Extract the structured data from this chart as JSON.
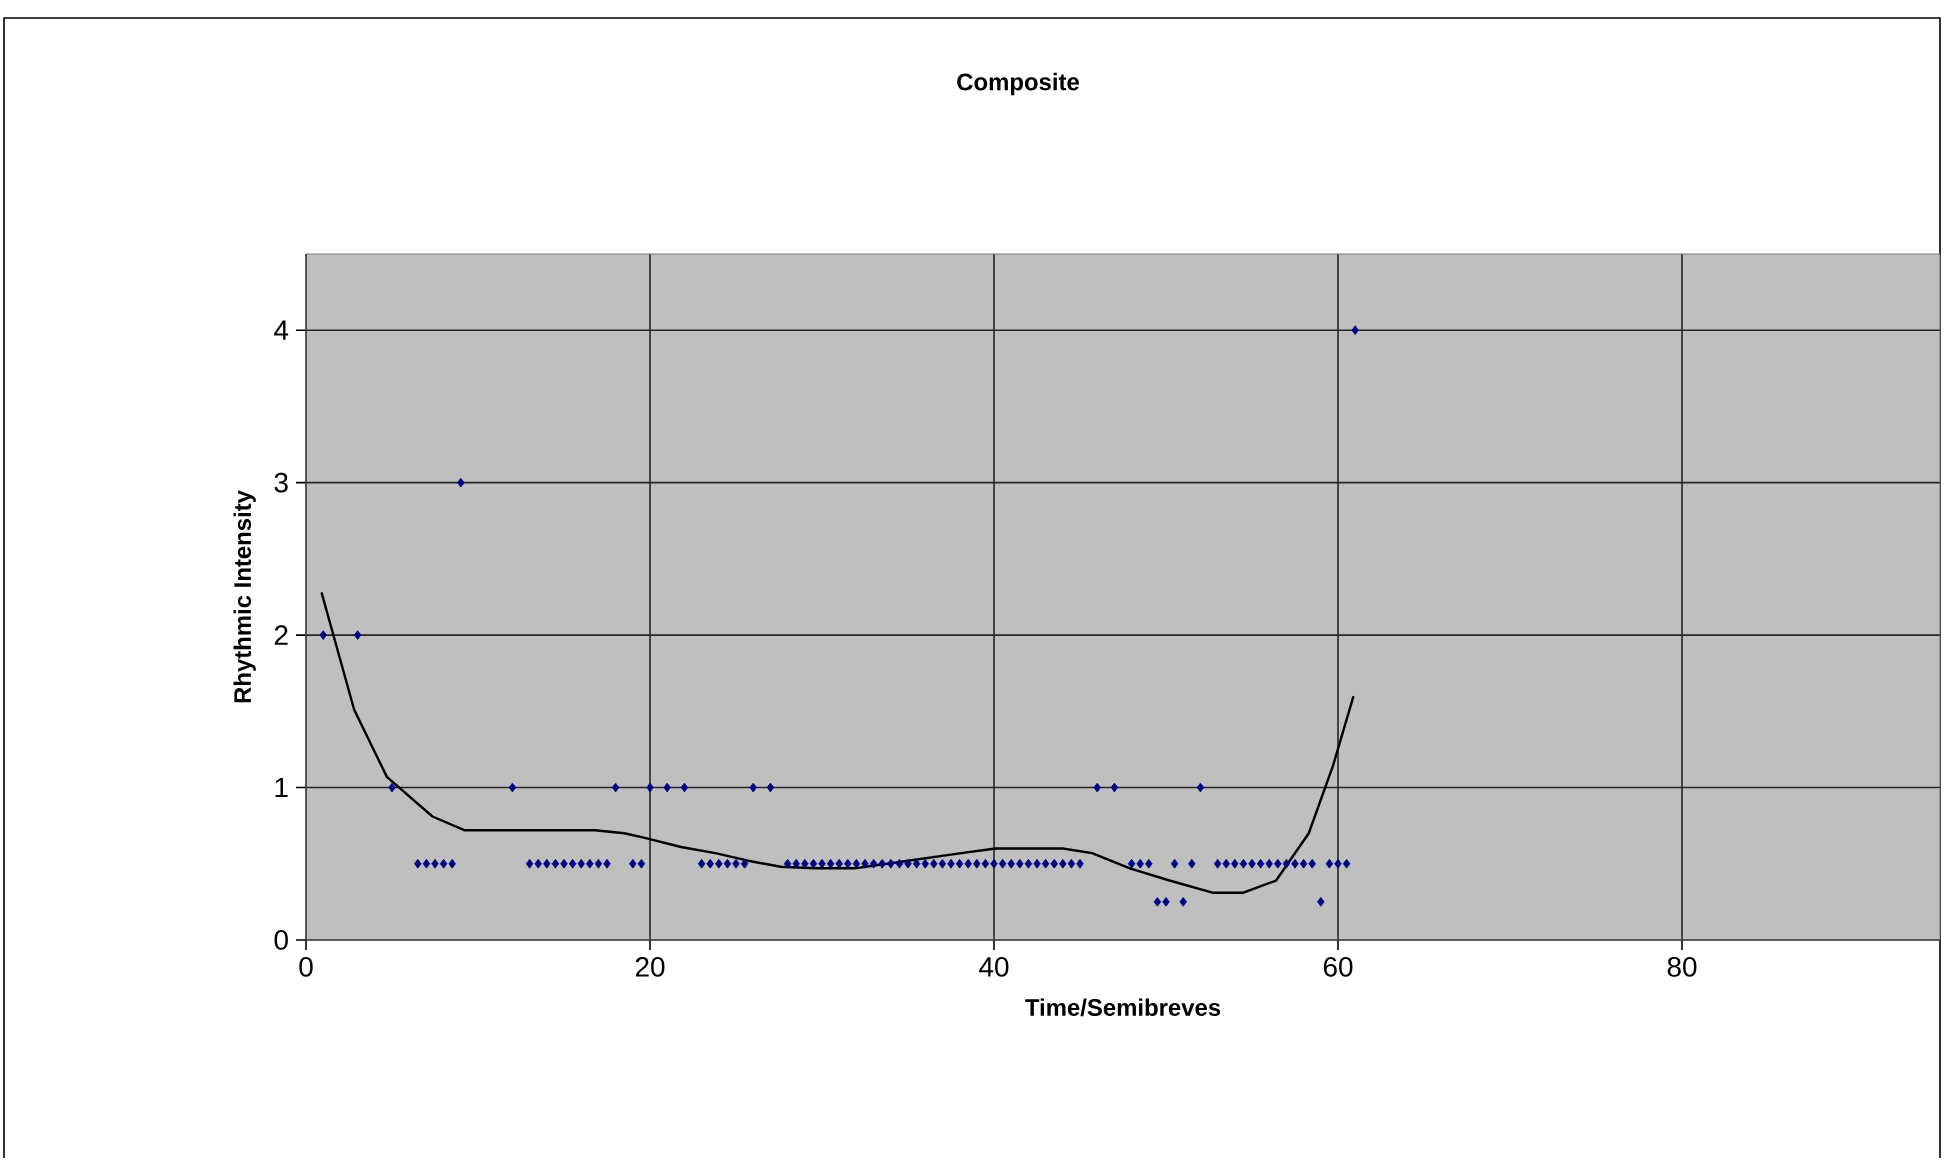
{
  "chart_data": {
    "type": "scatter",
    "title": "Composite",
    "xlabel": "Time/Semibreves",
    "ylabel": "Rhythmic Intensity",
    "xlim": [
      0,
      95
    ],
    "ylim": [
      0,
      4.5
    ],
    "xticks": [
      0,
      20,
      40,
      60,
      80
    ],
    "yticks": [
      0,
      1,
      2,
      3,
      4
    ],
    "grid": true,
    "series": [
      {
        "marker": "diamond",
        "color": "#000080",
        "x": [
          1,
          3,
          5,
          6.5,
          7,
          7.5,
          8,
          8.5,
          9,
          12,
          13,
          13.5,
          14,
          14.5,
          15,
          15.5,
          16,
          16.5,
          17,
          17.5,
          18,
          19,
          19.5,
          20,
          21,
          22,
          23,
          23.5,
          24,
          24.5,
          25,
          25.5,
          26,
          27,
          28,
          28.5,
          29,
          29.5,
          30,
          30.5,
          31,
          31.5,
          32,
          32.5,
          33,
          33.5,
          34,
          34.5,
          35,
          35.5,
          36,
          36.5,
          37,
          37.5,
          38,
          38.5,
          39,
          39.5,
          40,
          40.5,
          41,
          41.5,
          42,
          42.5,
          43,
          43.5,
          44,
          44.5,
          45,
          46,
          47,
          48,
          48.5,
          49,
          49.5,
          50,
          50.5,
          51,
          51.5,
          52,
          53,
          53.5,
          54,
          54.5,
          55,
          55.5,
          56,
          56.5,
          57,
          57.5,
          58,
          58.5,
          59,
          59.5,
          60,
          60.5,
          61
        ],
        "values": [
          2,
          2,
          1,
          0.5,
          0.5,
          0.5,
          0.5,
          0.5,
          3,
          1,
          0.5,
          0.5,
          0.5,
          0.5,
          0.5,
          0.5,
          0.5,
          0.5,
          0.5,
          0.5,
          1,
          0.5,
          0.5,
          1,
          1,
          1,
          0.5,
          0.5,
          0.5,
          0.5,
          0.5,
          0.5,
          1,
          1,
          0.5,
          0.5,
          0.5,
          0.5,
          0.5,
          0.5,
          0.5,
          0.5,
          0.5,
          0.5,
          0.5,
          0.5,
          0.5,
          0.5,
          0.5,
          0.5,
          0.5,
          0.5,
          0.5,
          0.5,
          0.5,
          0.5,
          0.5,
          0.5,
          0.5,
          0.5,
          0.5,
          0.5,
          0.5,
          0.5,
          0.5,
          0.5,
          0.5,
          0.5,
          0.5,
          1,
          1,
          0.5,
          0.5,
          0.5,
          0.25,
          0.25,
          0.5,
          0.25,
          0.5,
          1,
          0.5,
          0.5,
          0.5,
          0.5,
          0.5,
          0.5,
          0.5,
          0.5,
          0.5,
          0.5,
          0.5,
          0.5,
          0.25,
          0.5,
          0.5,
          0.5,
          4
        ]
      },
      {
        "type": "line",
        "marker": "none",
        "line_style": "solid",
        "color": "#000000",
        "x": [
          0.9,
          2.8,
          4.7,
          7.35,
          9.2,
          16.8,
          18.5,
          19.7,
          21.8,
          23.8,
          25.7,
          27.6,
          29.6,
          31.9,
          35,
          38.1,
          40.1,
          44,
          45.7,
          47.9,
          50.2,
          52.7,
          54.5,
          56.4,
          58.3,
          59.7,
          60.9
        ],
        "values": [
          2.28,
          1.51,
          1.07,
          0.81,
          0.72,
          0.72,
          0.7,
          0.67,
          0.61,
          0.57,
          0.52,
          0.48,
          0.47,
          0.47,
          0.52,
          0.57,
          0.6,
          0.6,
          0.57,
          0.47,
          0.39,
          0.31,
          0.31,
          0.39,
          0.7,
          1.14,
          1.6
        ]
      }
    ]
  }
}
